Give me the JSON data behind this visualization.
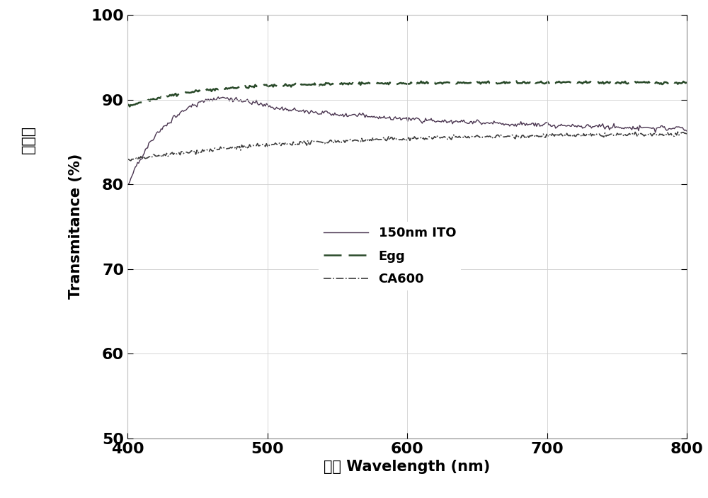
{
  "xlim": [
    400,
    800
  ],
  "ylim": [
    50,
    100
  ],
  "xticks": [
    400,
    500,
    600,
    700,
    800
  ],
  "yticks": [
    50,
    60,
    70,
    80,
    90,
    100
  ],
  "xlabel": "波长 Wavelength (nm)",
  "ylabel_chinese": "透射率",
  "ylabel_english": "Transmitance (%)",
  "legend_labels": [
    "150nm ITO",
    "Egg",
    "CA600"
  ],
  "line_color_ito": "#4a3550",
  "line_color_egg": "#2a4a2a",
  "line_color_ca600": "#3a3a3a",
  "background_color": "#ffffff",
  "grid_color": "#d0d0d0",
  "tick_fontsize": 16,
  "label_fontsize": 15,
  "legend_fontsize": 13,
  "spine_color": "#888888"
}
